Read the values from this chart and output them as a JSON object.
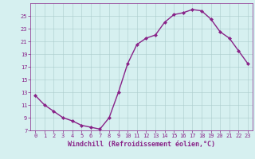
{
  "xlabel": "Windchill (Refroidissement éolien,°C)",
  "x": [
    0,
    1,
    2,
    3,
    4,
    5,
    6,
    7,
    8,
    9,
    10,
    11,
    12,
    13,
    14,
    15,
    16,
    17,
    18,
    19,
    20,
    21,
    22,
    23
  ],
  "y": [
    12.5,
    11.0,
    10.0,
    9.0,
    8.5,
    7.8,
    7.5,
    7.2,
    9.0,
    13.0,
    17.5,
    20.5,
    21.5,
    22.0,
    24.0,
    25.2,
    25.5,
    26.0,
    25.8,
    24.5,
    22.5,
    21.5,
    19.5,
    17.5
  ],
  "line_color": "#882288",
  "marker": "D",
  "marker_size": 2,
  "bg_color": "#d6f0f0",
  "grid_color": "#aacccc",
  "ylim": [
    7,
    27
  ],
  "xlim": [
    -0.5,
    23.5
  ],
  "yticks": [
    7,
    9,
    11,
    13,
    15,
    17,
    19,
    21,
    23,
    25
  ],
  "xticks": [
    0,
    1,
    2,
    3,
    4,
    5,
    6,
    7,
    8,
    9,
    10,
    11,
    12,
    13,
    14,
    15,
    16,
    17,
    18,
    19,
    20,
    21,
    22,
    23
  ],
  "tick_color": "#882288",
  "tick_fontsize": 5.0,
  "xlabel_fontsize": 6.0,
  "line_width": 1.0
}
